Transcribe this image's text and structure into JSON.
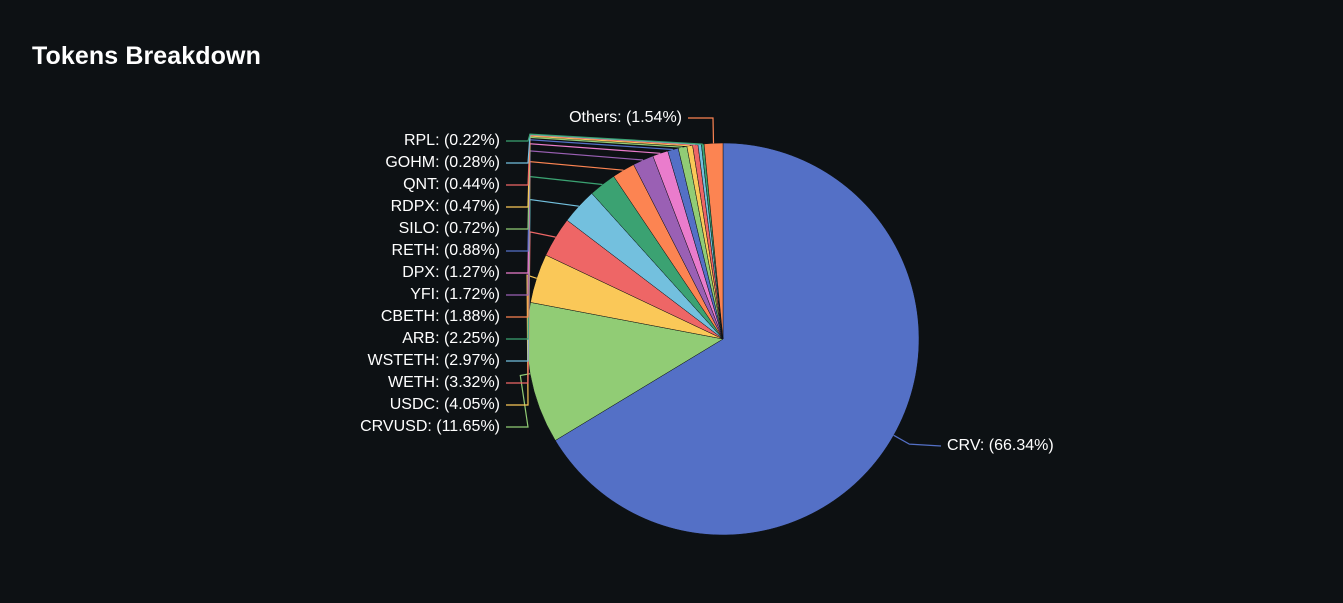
{
  "header": {
    "title": "Tokens Breakdown"
  },
  "chart_data": {
    "type": "pie",
    "title": "Tokens Breakdown",
    "label_format": "{name}: ({pct}%)",
    "slices": [
      {
        "name": "CRV",
        "value": 66.34,
        "color": "#5470c6"
      },
      {
        "name": "CRVUSD",
        "value": 11.65,
        "color": "#91cc75"
      },
      {
        "name": "USDC",
        "value": 4.05,
        "color": "#fac858"
      },
      {
        "name": "WETH",
        "value": 3.32,
        "color": "#ee6666"
      },
      {
        "name": "WSTETH",
        "value": 2.97,
        "color": "#73c0de"
      },
      {
        "name": "ARB",
        "value": 2.25,
        "color": "#3ba272"
      },
      {
        "name": "CBETH",
        "value": 1.88,
        "color": "#fc8452"
      },
      {
        "name": "YFI",
        "value": 1.72,
        "color": "#9a60b4"
      },
      {
        "name": "DPX",
        "value": 1.27,
        "color": "#ea7ccc"
      },
      {
        "name": "RETH",
        "value": 0.88,
        "color": "#5470c6"
      },
      {
        "name": "SILO",
        "value": 0.72,
        "color": "#91cc75"
      },
      {
        "name": "RDPX",
        "value": 0.47,
        "color": "#fac858"
      },
      {
        "name": "QNT",
        "value": 0.44,
        "color": "#ee6666"
      },
      {
        "name": "GOHM",
        "value": 0.28,
        "color": "#73c0de"
      },
      {
        "name": "RPL",
        "value": 0.22,
        "color": "#3ba272"
      },
      {
        "name": "Others",
        "value": 1.54,
        "color": "#fc8452"
      }
    ]
  }
}
